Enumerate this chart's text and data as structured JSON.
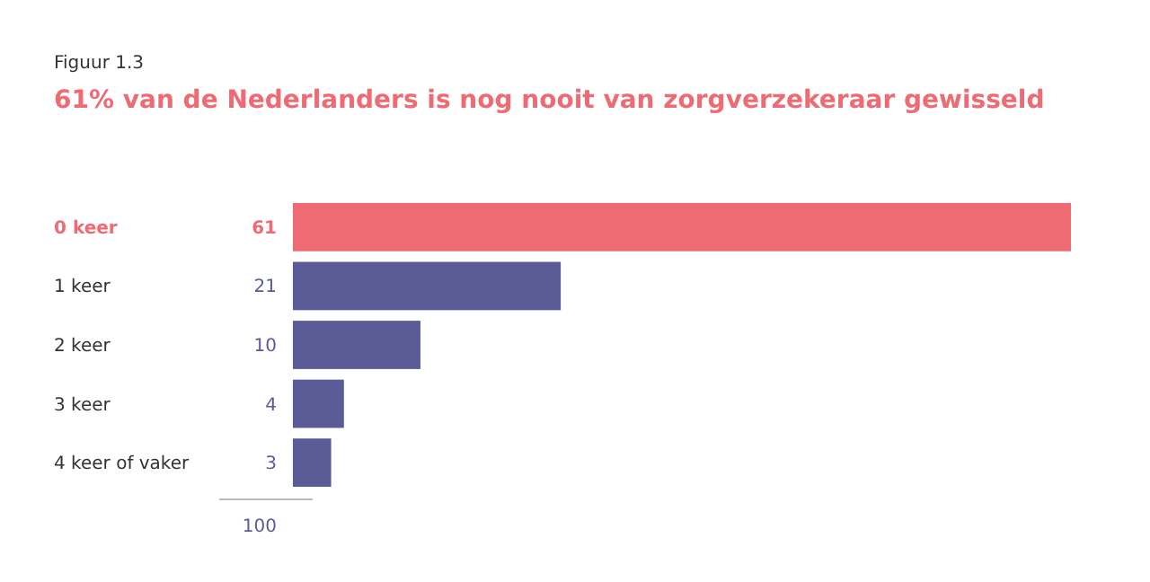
{
  "chart_data": {
    "type": "bar",
    "orientation": "horizontal",
    "subtitle": "Figuur 1.3",
    "title": "61% van de Nederlanders is nog nooit van zorgverzekeraar gewisseld",
    "categories": [
      "0 keer",
      "1 keer",
      "2 keer",
      "3 keer",
      "4 keer of vaker"
    ],
    "values": [
      61,
      21,
      10,
      4,
      3
    ],
    "colors": [
      "#ef6b73",
      "#5b5b97",
      "#5b5b97",
      "#5b5b97",
      "#5b5b97"
    ],
    "data_labels": true,
    "annotations": [
      "100"
    ]
  }
}
